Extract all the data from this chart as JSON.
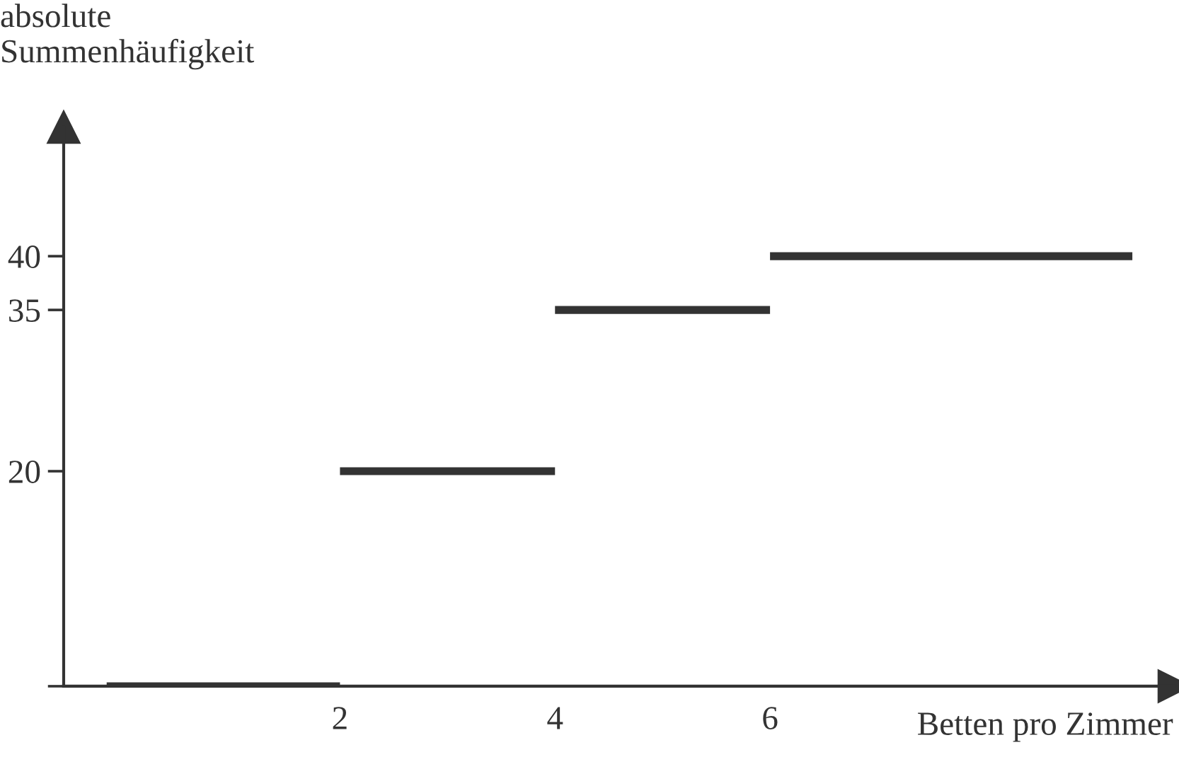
{
  "chart_data": {
    "type": "line",
    "ylabel": "absolute\nSummenhäufigkeit",
    "xlabel": "Betten pro Zimmer",
    "series": [
      {
        "color": "#333333",
        "x": [
          -0.17,
          2
        ],
        "values": [
          0,
          0
        ]
      },
      {
        "color": "#333333",
        "x": [
          2,
          4
        ],
        "values": [
          20,
          20
        ]
      },
      {
        "color": "#333333",
        "x": [
          4,
          6
        ],
        "values": [
          35,
          35
        ]
      },
      {
        "color": "#333333",
        "x": [
          6,
          9.37
        ],
        "values": [
          40,
          40
        ]
      }
    ],
    "xlim": [
      -0.57,
      9.76
    ],
    "ylim": [
      0,
      52
    ],
    "xticks": [
      2,
      4,
      6
    ],
    "yticks": [
      {
        "value": 0,
        "label": null
      },
      20,
      35,
      40
    ],
    "grid": false,
    "legend": false,
    "marker": "none",
    "line_style": "solid"
  }
}
